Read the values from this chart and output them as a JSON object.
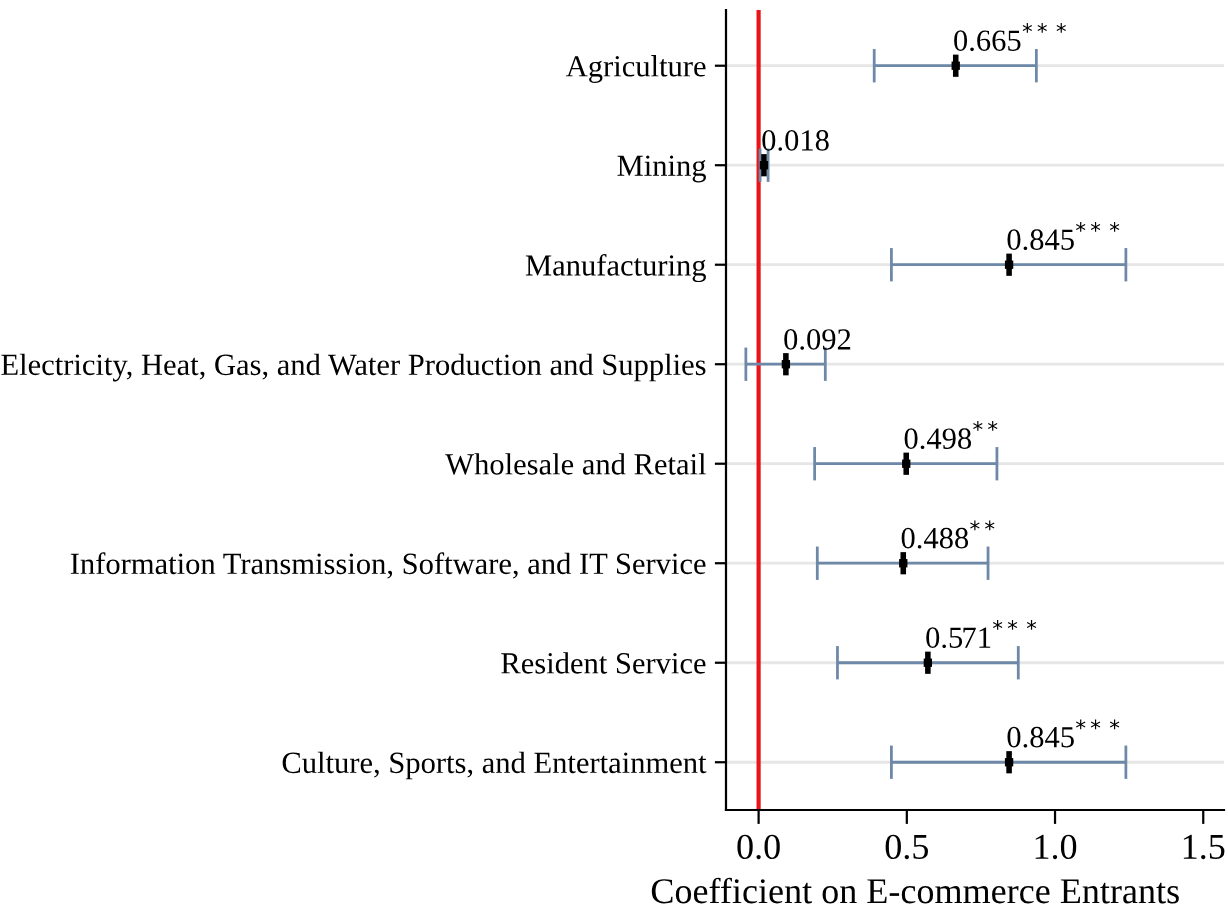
{
  "chart_data": {
    "type": "scatter",
    "orientation": "horizontal",
    "xlabel": "Coefficient on E-commerce Entrants",
    "categories": [
      "Agriculture",
      "Mining",
      "Manufacturing",
      "Electricity, Heat, Gas, and Water Production and Supplies",
      "Wholesale and Retail",
      "Information Transmission, Software, and IT Service",
      "Resident Service",
      "Culture, Sports, and Entertainment"
    ],
    "series": [
      {
        "color": "#000000",
        "values": [
          0.665,
          0.018,
          0.845,
          0.092,
          0.498,
          0.488,
          0.571,
          0.845
        ],
        "errors": [
          [
            0.39,
            0.937
          ],
          [
            0.005,
            0.032
          ],
          [
            0.448,
            1.239
          ],
          [
            -0.043,
            0.225
          ],
          [
            0.189,
            0.804
          ],
          [
            0.198,
            0.774
          ],
          [
            0.266,
            0.876
          ],
          [
            0.448,
            1.239
          ]
        ],
        "value_labels": [
          "0.665$^{***}$",
          "0.018",
          "0.845$^{***}$",
          "0.092",
          "0.498$^{**}$",
          "0.488$^{**}$",
          "0.571$^{***}$",
          "0.845$^{***}$"
        ]
      }
    ],
    "xlim": [
      -0.11,
      1.57
    ],
    "xticks": [
      {
        "value": 0,
        "label": "0.0"
      },
      0.5,
      {
        "value": 1,
        "label": "1.0"
      },
      1.5
    ],
    "ref_lines": [
      {
        "axis": "x",
        "value": 0,
        "color": "#e8141a"
      }
    ],
    "grid": "y"
  }
}
